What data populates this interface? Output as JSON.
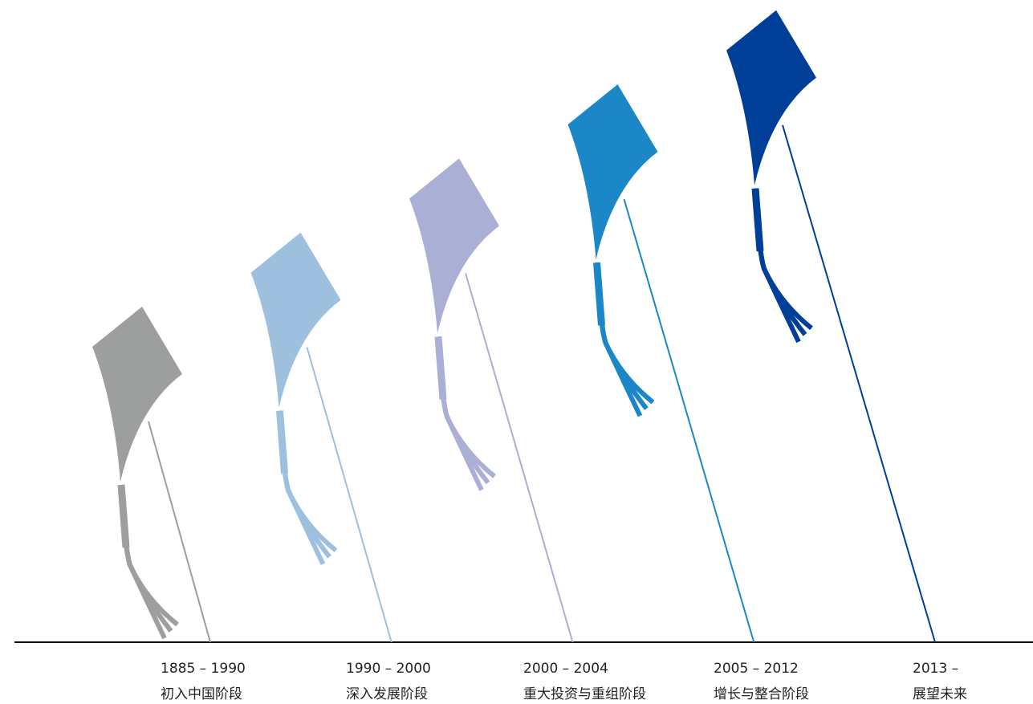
{
  "stages": [
    {
      "period": "1885 – 1990",
      "title": "初入中国阶段",
      "color": "#9d9e9e"
    },
    {
      "period": "1990 – 2000",
      "title": "深入发展阶段",
      "color": "#9dc0df"
    },
    {
      "period": "2000 – 2004",
      "title": "重大投资与重组阶段",
      "color": "#a9afd5"
    },
    {
      "period": "2005 – 2012",
      "title": "增长与整合阶段",
      "color": "#1c87c6"
    },
    {
      "period": "2013 –",
      "title": "展望未来",
      "color": "#003f98"
    }
  ]
}
